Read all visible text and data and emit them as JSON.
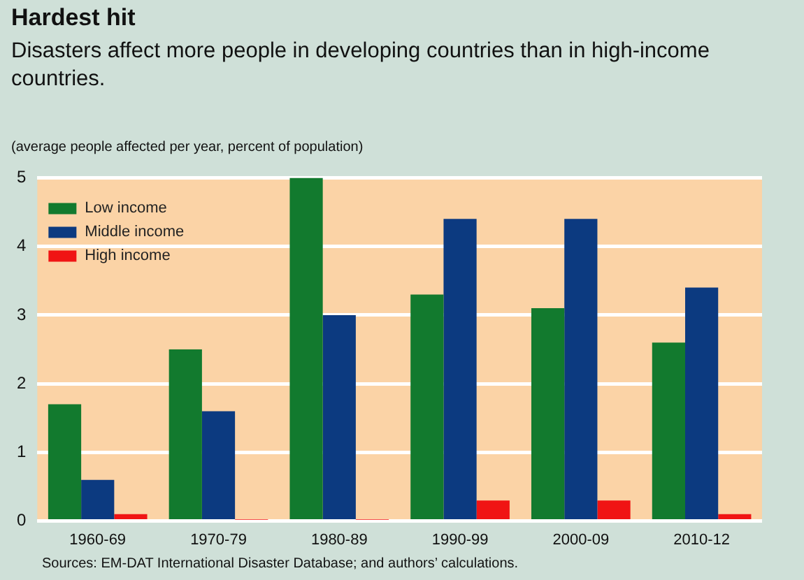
{
  "chart_data": {
    "type": "bar",
    "title": "Hardest hit",
    "subtitle": "Disasters affect more people in developing countries than in high-income countries.",
    "ylabel": "(average people affected per year, percent of population)",
    "categories": [
      "1960-69",
      "1970-79",
      "1980-89",
      "1990-99",
      "2000-09",
      "2010-12"
    ],
    "series": [
      {
        "name": "Low income",
        "color": "#127a2e",
        "values": [
          1.7,
          2.5,
          5.0,
          3.3,
          3.1,
          2.6
        ]
      },
      {
        "name": "Middle income",
        "color": "#0c3a80",
        "values": [
          0.6,
          1.6,
          3.0,
          4.4,
          4.4,
          3.4
        ]
      },
      {
        "name": "High income",
        "color": "#f01414",
        "values": [
          0.1,
          0.02,
          0.02,
          0.3,
          0.3,
          0.1
        ]
      }
    ],
    "ylim": [
      0,
      5
    ],
    "yticks": [
      0,
      1,
      2,
      3,
      4,
      5
    ],
    "grid": "y",
    "legend": "top left",
    "annotations": [
      "Sources: EM-DAT International Disaster Database; and authors’ calculations."
    ]
  }
}
